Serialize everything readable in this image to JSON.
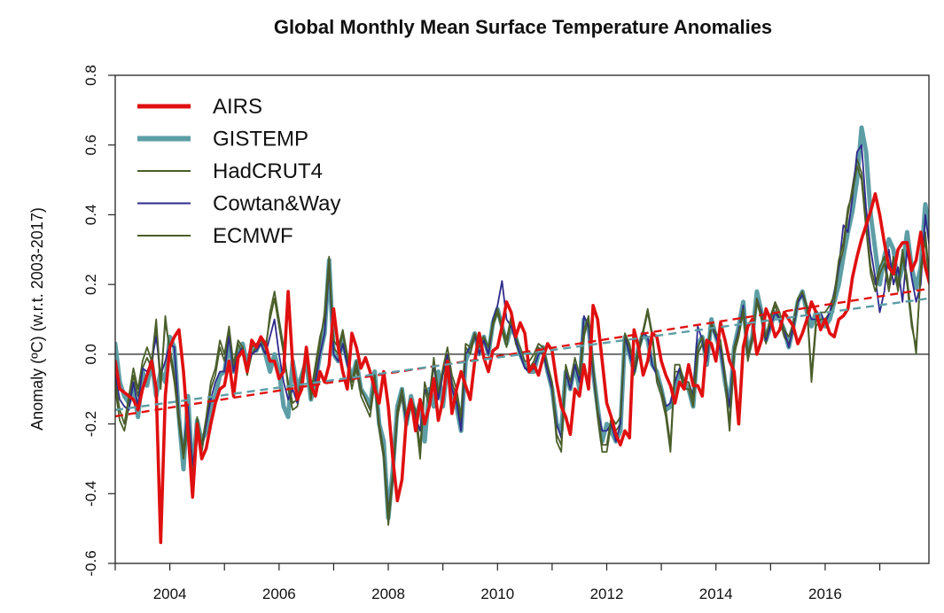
{
  "chart_data": {
    "type": "line",
    "title": "Global Monthly Mean Surface Temperature Anomalies",
    "xlabel": "",
    "ylabel": "Anomaly (ºC) (w.r.t. 2003-2017)",
    "xlim": [
      2003.0,
      2017.9
    ],
    "ylim": [
      -0.6,
      0.8
    ],
    "x_ticks": [
      2004,
      2006,
      2008,
      2010,
      2012,
      2014,
      2016
    ],
    "x_tick_labels": [
      "2004",
      "2006",
      "2008",
      "2010",
      "2012",
      "2014",
      "2016"
    ],
    "y_ticks": [
      -0.6,
      -0.4,
      -0.2,
      0.0,
      0.2,
      0.4,
      0.6,
      0.8
    ],
    "y_tick_labels": [
      "-0.6",
      "-0.4",
      "-0.2",
      "0.0",
      "0.2",
      "0.4",
      "0.6",
      "0.8"
    ],
    "grid": false,
    "zero_line": true,
    "legend_position": "top-left",
    "x_start": 2003.0,
    "x_step": 0.0833333,
    "series": [
      {
        "name": "AIRS",
        "color": "#e01010",
        "values": [
          -0.02,
          -0.1,
          -0.11,
          -0.12,
          -0.13,
          -0.16,
          -0.1,
          -0.06,
          -0.02,
          -0.1,
          -0.54,
          -0.12,
          0.02,
          0.05,
          0.07,
          -0.05,
          -0.22,
          -0.41,
          -0.2,
          -0.3,
          -0.27,
          -0.2,
          -0.14,
          -0.1,
          -0.09,
          -0.02,
          -0.12,
          -0.01,
          0.01,
          -0.05,
          0.04,
          0.02,
          0.05,
          0.03,
          -0.02,
          -0.02,
          -0.07,
          -0.05,
          0.18,
          -0.03,
          -0.13,
          -0.1,
          0.02,
          -0.09,
          -0.12,
          -0.05,
          -0.08,
          -0.03,
          0.13,
          0.02,
          -0.05,
          -0.1,
          0.06,
          0.02,
          -0.04,
          -0.01,
          -0.05,
          -0.1,
          -0.14,
          -0.05,
          -0.15,
          -0.3,
          -0.42,
          -0.36,
          -0.18,
          -0.13,
          -0.22,
          -0.13,
          -0.2,
          -0.15,
          -0.07,
          -0.19,
          -0.13,
          -0.02,
          -0.17,
          -0.1,
          -0.05,
          -0.09,
          -0.13,
          -0.02,
          0.06,
          -0.01,
          -0.05,
          0.01,
          0.02,
          0.08,
          0.15,
          0.12,
          0.05,
          0.09,
          0.06,
          -0.05,
          -0.03,
          -0.06,
          -0.01,
          0.03,
          0.01,
          -0.08,
          -0.15,
          -0.18,
          -0.23,
          -0.1,
          -0.12,
          -0.03,
          -0.1,
          0.14,
          0.1,
          -0.02,
          -0.14,
          -0.18,
          -0.23,
          -0.26,
          -0.22,
          -0.24,
          0.07,
          0.02,
          -0.06,
          -0.02,
          0.06,
          0.05,
          -0.02,
          -0.06,
          -0.09,
          -0.14,
          -0.08,
          -0.1,
          -0.03,
          -0.09,
          -0.09,
          -0.12,
          0.04,
          0.03,
          -0.02,
          0.09,
          0.04,
          -0.02,
          -0.05,
          -0.2,
          0.02,
          0.08,
          0.1,
          0.0,
          0.04,
          0.13,
          0.1,
          0.05,
          0.07,
          0.12,
          0.1,
          0.08,
          0.03,
          0.06,
          0.1,
          0.15,
          0.12,
          0.07,
          0.1,
          0.06,
          0.05,
          0.1,
          0.11,
          0.13,
          0.22,
          0.28,
          0.33,
          0.37,
          0.41,
          0.46,
          0.4,
          0.32,
          0.25,
          0.23,
          0.3,
          0.32,
          0.32,
          0.24,
          0.27,
          0.35,
          0.25,
          0.2,
          0.27,
          0.35,
          0.25,
          0.15,
          0.26,
          0.18,
          0.2,
          0.14,
          0.2,
          0.12,
          0.18
        ]
      },
      {
        "name": "GISTEMP",
        "color": "#5d9ea6",
        "values": [
          0.03,
          -0.08,
          -0.12,
          -0.14,
          -0.1,
          -0.18,
          -0.05,
          -0.09,
          -0.02,
          -0.12,
          -0.05,
          -0.08,
          0.05,
          0.02,
          -0.18,
          -0.33,
          -0.12,
          -0.35,
          -0.19,
          -0.25,
          -0.22,
          -0.15,
          -0.12,
          -0.06,
          -0.05,
          0.03,
          -0.05,
          0.0,
          0.03,
          -0.03,
          0.02,
          0.01,
          0.04,
          0.0,
          -0.05,
          0.0,
          -0.05,
          -0.15,
          -0.18,
          -0.02,
          -0.1,
          -0.06,
          -0.02,
          -0.13,
          -0.08,
          0.0,
          0.06,
          0.27,
          0.0,
          -0.02,
          0.04,
          -0.02,
          -0.07,
          -0.02,
          -0.1,
          -0.12,
          -0.15,
          -0.05,
          -0.2,
          -0.25,
          -0.47,
          -0.33,
          -0.15,
          -0.1,
          -0.2,
          -0.12,
          -0.18,
          -0.14,
          -0.25,
          -0.1,
          -0.15,
          -0.05,
          -0.15,
          -0.03,
          -0.1,
          -0.15,
          -0.22,
          -0.02,
          0.02,
          0.06,
          0.0,
          0.05,
          0.0,
          0.09,
          0.13,
          0.08,
          0.03,
          0.08,
          0.05,
          0.0,
          -0.03,
          -0.05,
          -0.05,
          0.0,
          0.02,
          -0.05,
          -0.1,
          -0.2,
          -0.22,
          -0.05,
          -0.1,
          -0.03,
          -0.1,
          0.1,
          0.08,
          -0.05,
          -0.15,
          -0.25,
          -0.2,
          -0.22,
          -0.25,
          -0.22,
          0.05,
          0.0,
          -0.05,
          0.02,
          0.06,
          0.04,
          -0.03,
          -0.05,
          -0.1,
          -0.16,
          -0.15,
          -0.1,
          -0.05,
          -0.08,
          -0.1,
          -0.15,
          0.03,
          0.05,
          -0.03,
          0.1,
          0.05,
          0.01,
          -0.08,
          -0.15,
          0.02,
          0.08,
          0.15,
          0.0,
          0.05,
          0.18,
          0.12,
          0.04,
          0.08,
          0.12,
          0.1,
          0.07,
          0.02,
          0.08,
          0.15,
          0.18,
          0.12,
          0.08,
          0.12,
          0.1,
          0.08,
          0.1,
          0.15,
          0.2,
          0.28,
          0.35,
          0.41,
          0.5,
          0.65,
          0.58,
          0.4,
          0.3,
          0.2,
          0.28,
          0.33,
          0.3,
          0.2,
          0.25,
          0.35,
          0.25,
          0.19,
          0.25,
          0.43,
          0.35,
          0.2,
          0.15,
          0.08,
          0.05,
          0.12,
          0.15,
          0.1,
          0.13
        ]
      },
      {
        "name": "HadCRUT4",
        "color": "#4a5e2a",
        "values": [
          -0.1,
          -0.19,
          -0.22,
          -0.15,
          -0.06,
          -0.12,
          -0.04,
          -0.01,
          -0.04,
          0.08,
          -0.1,
          0.11,
          0.0,
          -0.08,
          -0.2,
          -0.3,
          -0.2,
          -0.38,
          -0.2,
          -0.28,
          -0.2,
          -0.1,
          -0.06,
          0.02,
          -0.02,
          0.07,
          -0.05,
          0.03,
          0.0,
          -0.06,
          0.0,
          0.02,
          0.03,
          0.0,
          0.12,
          0.18,
          0.1,
          0.02,
          -0.1,
          -0.16,
          -0.15,
          -0.08,
          0.0,
          -0.13,
          -0.05,
          0.03,
          0.12,
          0.28,
          0.02,
          0.0,
          0.06,
          -0.02,
          -0.1,
          -0.04,
          -0.12,
          -0.15,
          -0.18,
          -0.08,
          -0.22,
          -0.3,
          -0.49,
          -0.36,
          -0.18,
          -0.12,
          -0.2,
          -0.15,
          -0.18,
          -0.3,
          -0.1,
          -0.15,
          -0.03,
          -0.13,
          -0.06,
          0.0,
          -0.08,
          -0.12,
          -0.2,
          0.02,
          0.0,
          0.05,
          0.02,
          0.04,
          0.0,
          0.08,
          0.12,
          0.07,
          0.02,
          0.1,
          0.03,
          0.0,
          -0.04,
          -0.04,
          -0.02,
          0.02,
          0.0,
          -0.05,
          -0.1,
          -0.25,
          -0.28,
          -0.05,
          -0.1,
          -0.03,
          -0.08,
          0.05,
          0.1,
          -0.05,
          -0.18,
          -0.28,
          -0.28,
          -0.2,
          -0.22,
          -0.2,
          0.05,
          0.02,
          -0.06,
          0.0,
          0.06,
          0.12,
          0.05,
          -0.08,
          -0.12,
          -0.18,
          -0.28,
          -0.05,
          -0.05,
          -0.1,
          -0.1,
          -0.15,
          0.0,
          0.03,
          -0.02,
          0.08,
          0.05,
          0.02,
          -0.08,
          -0.22,
          0.0,
          0.05,
          0.12,
          -0.02,
          0.04,
          0.15,
          0.1,
          0.03,
          0.1,
          0.14,
          0.1,
          0.05,
          0.03,
          0.07,
          0.15,
          0.17,
          0.13,
          -0.08,
          0.08,
          0.1,
          0.1,
          0.12,
          0.15,
          0.25,
          0.3,
          0.4,
          0.48,
          0.56,
          0.52,
          0.38,
          0.25,
          0.2,
          0.25,
          0.28,
          0.2,
          0.28,
          0.2,
          0.3,
          0.22,
          0.1,
          0.0,
          0.25,
          0.35,
          0.2,
          0.12,
          0.1,
          0.08,
          0.2,
          0.28,
          0.05,
          0.02
        ]
      },
      {
        "name": "Cowtan&Way",
        "color": "#2e2a8c",
        "values": [
          -0.06,
          -0.13,
          -0.15,
          -0.16,
          -0.08,
          -0.15,
          -0.04,
          -0.05,
          -0.02,
          0.05,
          -0.06,
          -0.02,
          0.03,
          0.02,
          -0.18,
          -0.28,
          -0.15,
          -0.32,
          -0.22,
          -0.26,
          -0.2,
          -0.13,
          -0.08,
          -0.05,
          -0.05,
          0.05,
          -0.05,
          0.0,
          0.02,
          -0.04,
          0.0,
          0.01,
          0.03,
          0.0,
          0.05,
          0.1,
          0.0,
          -0.08,
          -0.13,
          -0.1,
          -0.14,
          -0.08,
          0.0,
          -0.1,
          -0.08,
          0.0,
          0.06,
          0.25,
          0.0,
          -0.02,
          0.03,
          -0.03,
          -0.08,
          -0.02,
          -0.1,
          -0.13,
          -0.16,
          -0.06,
          -0.2,
          -0.28,
          -0.45,
          -0.35,
          -0.16,
          -0.1,
          -0.2,
          -0.13,
          -0.18,
          -0.22,
          -0.1,
          -0.12,
          -0.02,
          -0.13,
          -0.05,
          0.0,
          -0.1,
          -0.14,
          -0.22,
          0.0,
          0.02,
          0.06,
          0.0,
          0.04,
          0.0,
          0.1,
          0.14,
          0.21,
          0.1,
          0.08,
          0.04,
          0.0,
          -0.04,
          -0.05,
          -0.04,
          0.0,
          0.01,
          -0.05,
          -0.1,
          -0.2,
          -0.24,
          -0.05,
          -0.1,
          -0.03,
          -0.08,
          0.11,
          0.08,
          -0.05,
          -0.16,
          -0.22,
          -0.22,
          -0.2,
          -0.25,
          -0.2,
          0.05,
          0.0,
          -0.05,
          0.02,
          0.06,
          0.05,
          -0.03,
          -0.06,
          -0.1,
          -0.15,
          -0.14,
          -0.08,
          -0.04,
          -0.08,
          -0.08,
          -0.12,
          0.08,
          0.04,
          -0.02,
          0.09,
          0.05,
          0.01,
          -0.07,
          -0.15,
          0.02,
          0.07,
          0.14,
          0.0,
          0.05,
          0.16,
          0.12,
          0.04,
          0.08,
          0.12,
          0.1,
          0.07,
          0.02,
          0.08,
          0.15,
          0.17,
          0.14,
          0.1,
          0.1,
          0.12,
          0.09,
          0.12,
          0.18,
          0.25,
          0.37,
          0.35,
          0.45,
          0.58,
          0.6,
          0.42,
          0.3,
          0.22,
          0.12,
          0.18,
          0.3,
          0.2,
          0.25,
          0.15,
          0.3,
          0.22,
          0.15,
          0.2,
          0.4,
          0.3,
          0.15,
          0.1,
          -0.03,
          0.05,
          0.15,
          0.1,
          0.08,
          0.1
        ]
      },
      {
        "name": "ECMWF",
        "color": "#4a5e2a",
        "values": [
          -0.08,
          -0.16,
          -0.2,
          -0.12,
          -0.04,
          -0.1,
          -0.02,
          0.02,
          -0.02,
          0.1,
          -0.08,
          0.09,
          0.02,
          -0.06,
          -0.18,
          -0.28,
          -0.18,
          -0.36,
          -0.18,
          -0.26,
          -0.18,
          -0.08,
          -0.04,
          0.04,
          0.0,
          0.08,
          -0.03,
          0.04,
          0.02,
          -0.04,
          0.02,
          0.03,
          0.04,
          0.02,
          0.1,
          0.16,
          0.08,
          0.0,
          -0.08,
          -0.14,
          -0.13,
          -0.06,
          0.02,
          -0.11,
          -0.03,
          0.05,
          0.1,
          0.25,
          0.04,
          0.02,
          0.07,
          0.0,
          -0.08,
          -0.02,
          -0.1,
          -0.13,
          -0.16,
          -0.06,
          -0.2,
          -0.28,
          -0.46,
          -0.34,
          -0.16,
          -0.1,
          -0.18,
          -0.13,
          -0.16,
          -0.27,
          -0.08,
          -0.13,
          -0.01,
          -0.11,
          -0.04,
          0.02,
          -0.06,
          -0.1,
          -0.18,
          0.03,
          0.02,
          0.06,
          0.03,
          0.05,
          0.02,
          0.09,
          0.13,
          0.08,
          0.04,
          0.11,
          0.05,
          0.02,
          -0.02,
          -0.02,
          0.0,
          0.03,
          0.02,
          -0.03,
          -0.08,
          -0.23,
          -0.26,
          -0.03,
          -0.08,
          -0.01,
          -0.06,
          0.07,
          0.11,
          -0.03,
          -0.16,
          -0.26,
          -0.26,
          -0.18,
          -0.2,
          -0.18,
          0.06,
          0.03,
          -0.04,
          0.02,
          0.07,
          0.13,
          0.06,
          -0.06,
          -0.1,
          -0.16,
          -0.26,
          -0.03,
          -0.03,
          -0.08,
          -0.08,
          -0.13,
          0.02,
          0.05,
          0.0,
          0.09,
          0.06,
          0.04,
          -0.06,
          -0.2,
          0.02,
          0.06,
          0.13,
          0.0,
          0.05,
          0.16,
          0.11,
          0.05,
          0.11,
          0.15,
          0.12,
          0.07,
          0.05,
          0.09,
          0.16,
          0.18,
          0.14,
          -0.06,
          0.1,
          0.12,
          0.12,
          0.14,
          0.17,
          0.27,
          0.32,
          0.42,
          0.46,
          0.54,
          0.5,
          0.36,
          0.23,
          0.18,
          0.23,
          0.26,
          0.18,
          0.26,
          0.18,
          0.28,
          0.2,
          0.08,
          0.02,
          0.23,
          0.33,
          0.18,
          0.14,
          0.12,
          0.1,
          0.18,
          0.26,
          0.07,
          0.04
        ]
      }
    ],
    "trends": [
      {
        "series": "AIRS",
        "color": "#e01010",
        "start": [
          2003.0,
          -0.178
        ],
        "end": [
          2017.9,
          0.188
        ]
      },
      {
        "series": "GISTEMP",
        "color": "#5d9ea6",
        "start": [
          2003.0,
          -0.16
        ],
        "end": [
          2017.9,
          0.16
        ]
      }
    ]
  }
}
